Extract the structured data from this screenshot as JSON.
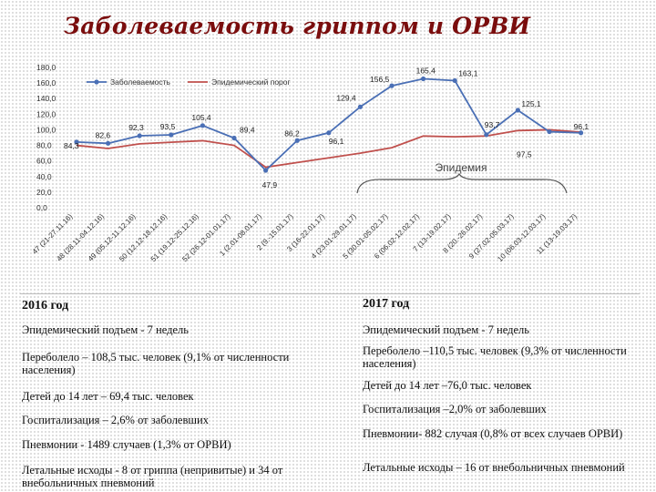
{
  "title": "Заболеваемость гриппом и ОРВИ",
  "colors": {
    "incidence": "#4a6fb5",
    "epidemic": "#c0504d",
    "title": "#7a0d0d"
  },
  "chart_data": {
    "type": "line",
    "ylim": [
      0,
      180
    ],
    "y_ticks": [
      "0,0",
      "20,0",
      "40,0",
      "60,0",
      "80,0",
      "100,0",
      "120,0",
      "140,0",
      "160,0",
      "180,0"
    ],
    "categories": [
      "47 (21-27.11.16)",
      "48 (28.11-04.12.16)",
      "49 (05.12-11.12.16)",
      "50 (12.12-18.12.16)",
      "51 (19.12-25.12.16)",
      "52 (26.12-01.01.17)",
      "1 (2.01-08.01.17)",
      "2 (9.-15.01.17)",
      "3 (16-22.01.17)",
      "4 (23.01-29.01.17)",
      "5 (30.01-05.02.17)",
      "6 (06.02-12.02.17)",
      "7 (13-19.02.17)",
      "8 (20.-26.02.17)",
      "9 (27.02-05.03.17)",
      "10 (06.03-12.03.17)",
      "11 (13-19.03.17)"
    ],
    "series": [
      {
        "name": "Заболеваемость",
        "values": [
          84.3,
          82.6,
          92.3,
          93.5,
          105.4,
          89.4,
          47.9,
          86.2,
          96.1,
          129.4,
          156.5,
          165.4,
          163.1,
          93.7,
          125.1,
          97.5,
          96.1
        ],
        "labels": [
          "84,3",
          "82,6",
          "92,3",
          "93,5",
          "105,4",
          "89,4",
          "47,9",
          "86,2",
          "96,1",
          "129,4",
          "156,5",
          "165,4",
          "163,1",
          "93,7",
          "125,1",
          "97,5",
          "96,1"
        ]
      },
      {
        "name": "Эпидемический порог",
        "values": [
          80,
          76,
          82,
          84,
          86,
          80,
          52,
          58,
          64,
          70,
          77,
          92,
          91,
          92,
          99,
          100,
          97
        ]
      }
    ],
    "annotation": "Эпидемия",
    "legend": "top-left"
  },
  "left": {
    "year": "2016 год",
    "items": [
      "Эпидемический подъем - 7 недель",
      "Переболело – 108,5 тыс. человек (9,1% от численности населения)",
      "Детей до 14 лет – 69,4 тыс. человек",
      "Госпитализация – 2,6% от заболевших",
      "Пневмонии - 1489 случаев (1,3% от ОРВИ)",
      "Летальные исходы - 8 от гриппа (непривитые) и 34 от внебольничных пневмоний"
    ]
  },
  "right": {
    "year": "2017 год",
    "items": [
      "Эпидемический подъем - 7 недель",
      "Переболело –110,5 тыс. человек (9,3% от численности населения)",
      "Детей до 14 лет –76,0 тыс. человек",
      "Госпитализация –2,0% от заболевших",
      "Пневмонии- 882 случая (0,8% от всех случаев ОРВИ)",
      "Летальные исходы – 16 от внебольничных пневмоний"
    ]
  }
}
